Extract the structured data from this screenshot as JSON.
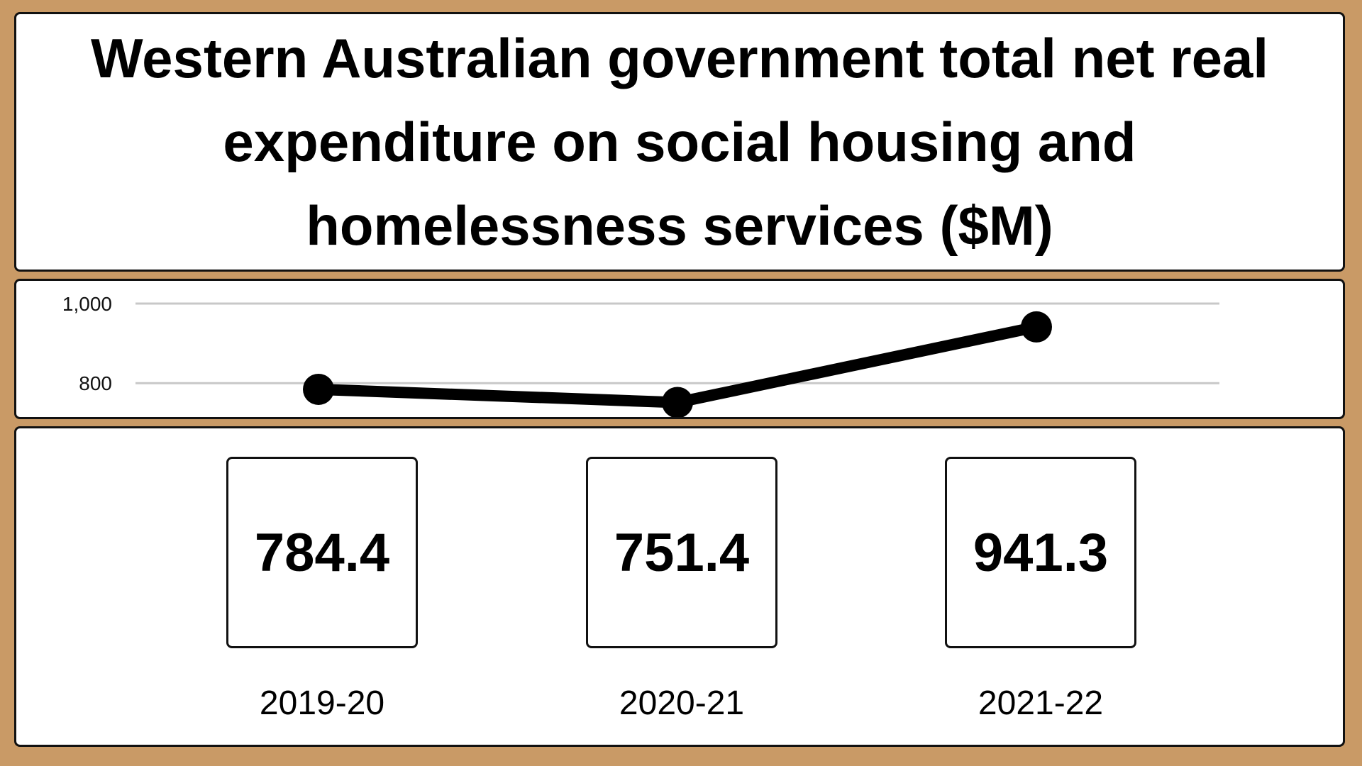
{
  "chart_data": {
    "type": "line",
    "title": "Western Australian government total net real expenditure on social housing and homelessness services ($M)",
    "categories": [
      "2019-20",
      "2020-21",
      "2021-22"
    ],
    "series": [
      {
        "values": [
          784.4,
          751.4,
          941.3
        ]
      }
    ],
    "value_labels": [
      "784.4",
      "751.4",
      "941.3"
    ],
    "y_ticks": [
      800,
      1000
    ],
    "y_tick_labels": [
      "800",
      "1,000"
    ],
    "ylim": [
      640,
      1000
    ],
    "grid": true,
    "colors": {
      "line": "#000000",
      "grid": "#c8c8c8",
      "background": "#c99a66"
    }
  }
}
